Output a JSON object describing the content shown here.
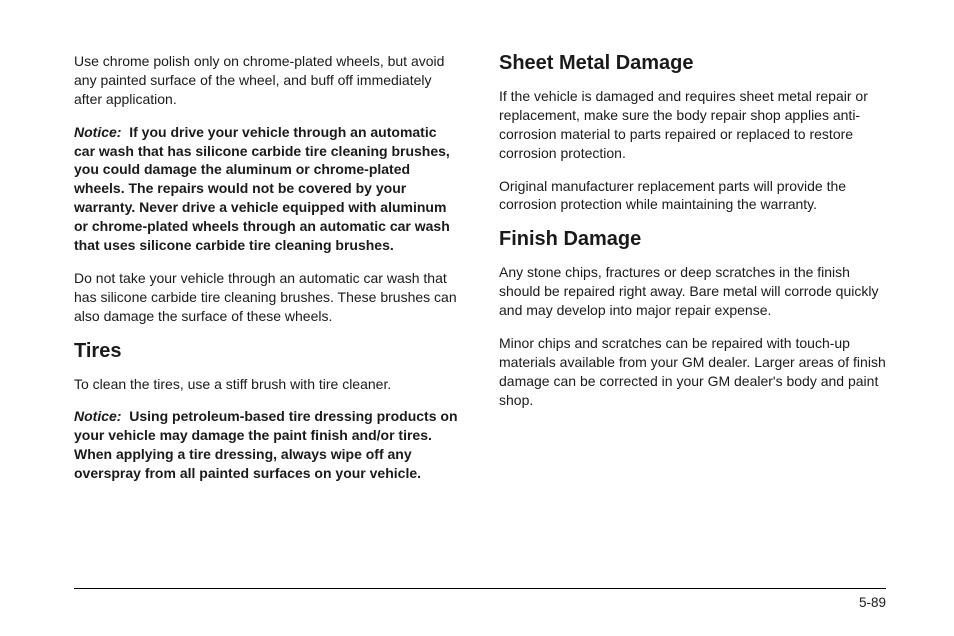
{
  "left": {
    "p1": "Use chrome polish only on chrome-plated wheels, but avoid any painted surface of the wheel, and buff off immediately after application.",
    "notice1_label": "Notice:",
    "notice1_body": "If you drive your vehicle through an automatic car wash that has silicone carbide tire cleaning brushes, you could damage the aluminum or chrome-plated wheels. The repairs would not be covered by your warranty. Never drive a vehicle equipped with aluminum or chrome-plated wheels through an automatic car wash that uses silicone carbide tire cleaning brushes.",
    "p2": "Do not take your vehicle through an automatic car wash that has silicone carbide tire cleaning brushes. These brushes can also damage the surface of these wheels.",
    "h_tires": "Tires",
    "p3": "To clean the tires, use a stiff brush with tire cleaner.",
    "notice2_label": "Notice:",
    "notice2_body": "Using petroleum-based tire dressing products on your vehicle may damage the paint finish and/or tires. When applying a tire dressing, always wipe off any overspray from all painted surfaces on your vehicle."
  },
  "right": {
    "h_sheet": "Sheet Metal Damage",
    "p1": "If the vehicle is damaged and requires sheet metal repair or replacement, make sure the body repair shop applies anti-corrosion material to parts repaired or replaced to restore corrosion protection.",
    "p2": "Original manufacturer replacement parts will provide the corrosion protection while maintaining the warranty.",
    "h_finish": "Finish Damage",
    "p3": "Any stone chips, fractures or deep scratches in the finish should be repaired right away. Bare metal will corrode quickly and may develop into major repair expense.",
    "p4": "Minor chips and scratches can be repaired with touch-up materials available from your GM dealer. Larger areas of finish damage can be corrected in your GM dealer's body and paint shop."
  },
  "page_number": "5-89"
}
